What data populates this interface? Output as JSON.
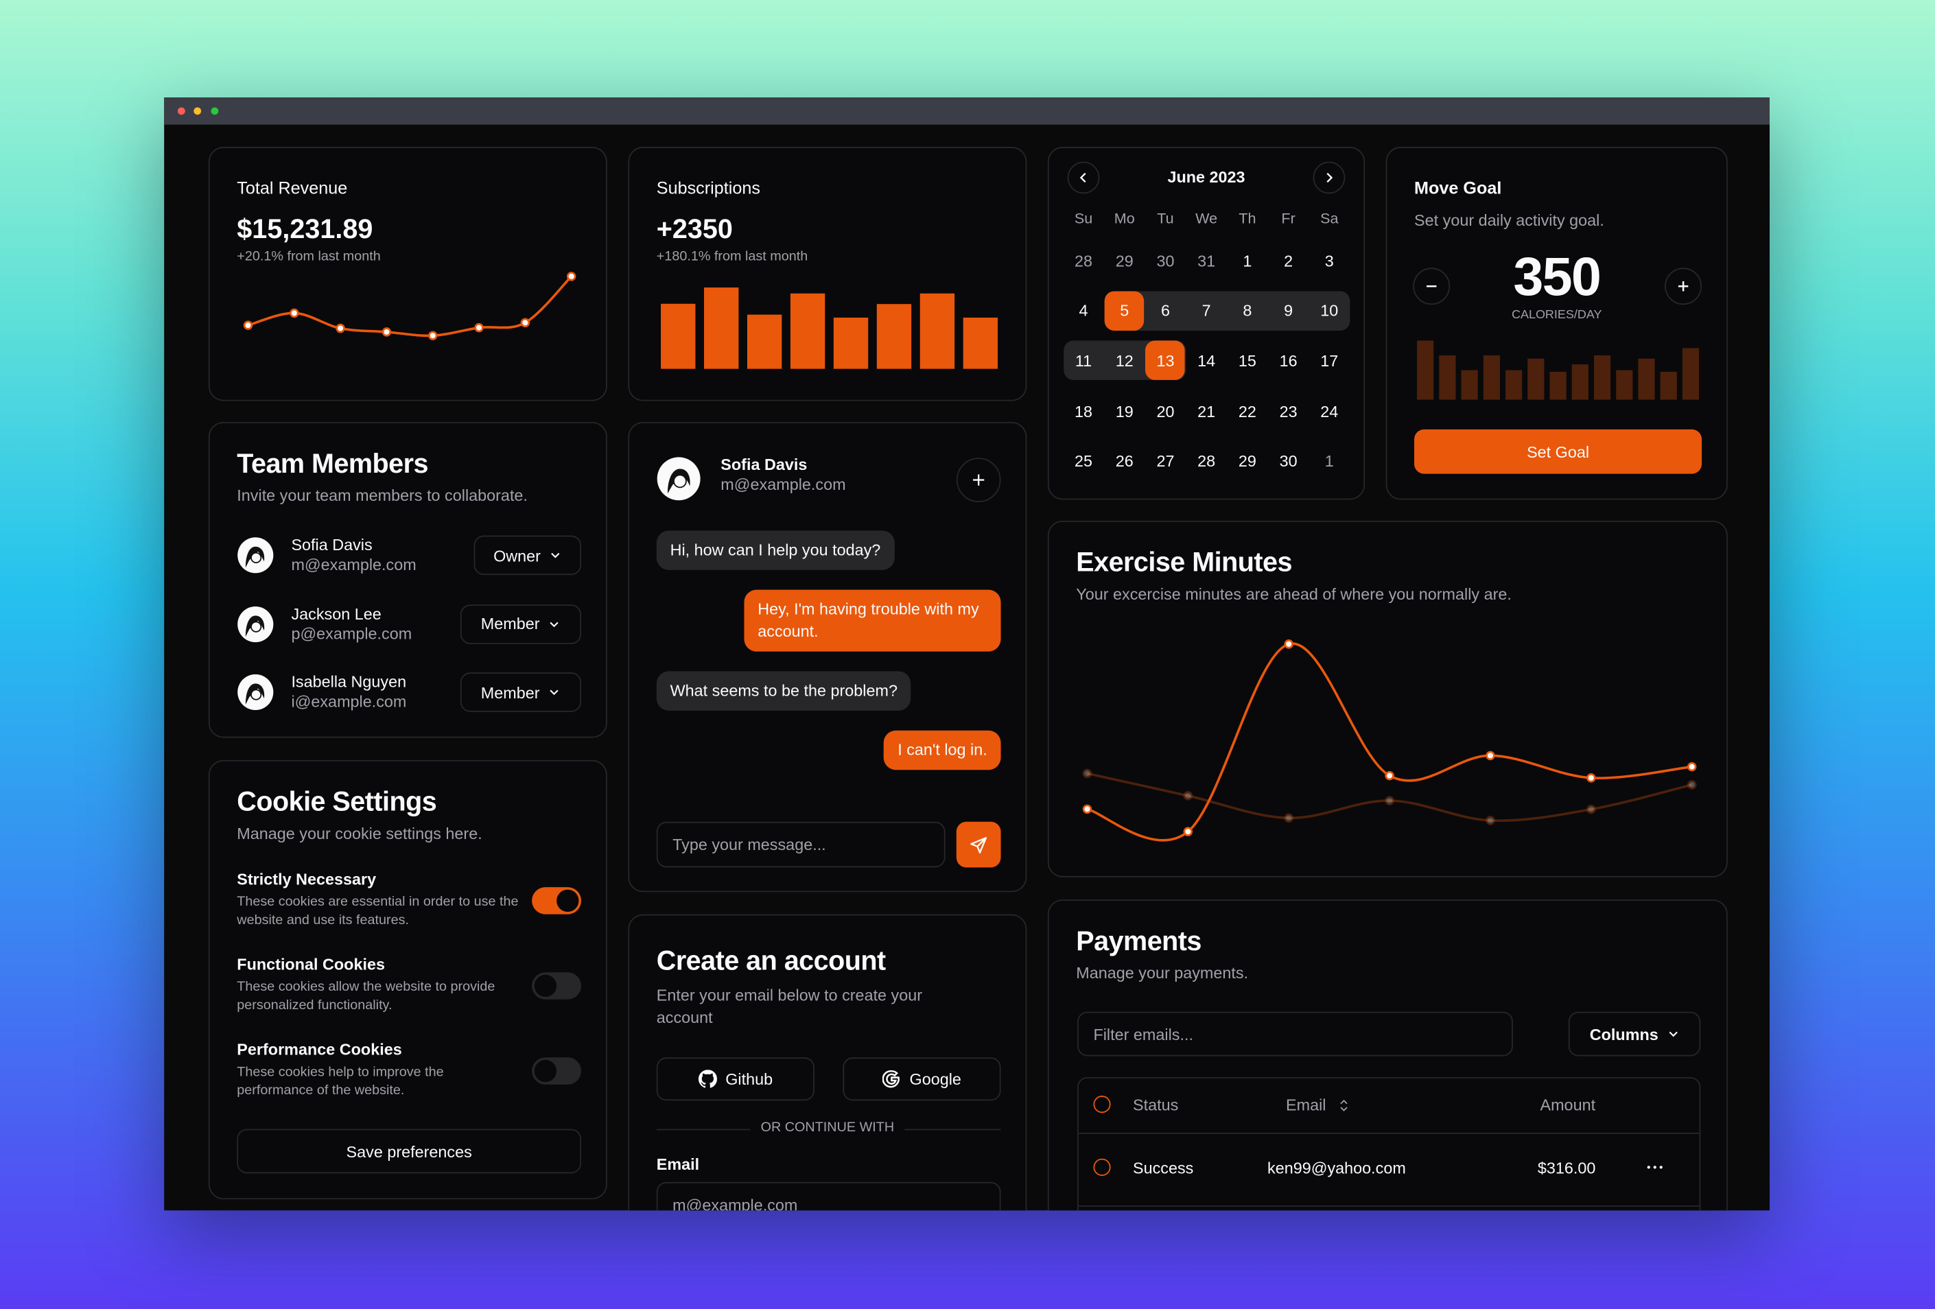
{
  "revenue": {
    "title": "Total Revenue",
    "value": "$15,231.89",
    "change": "+20.1% from last month"
  },
  "subscriptions": {
    "title": "Subscriptions",
    "value": "+2350",
    "change": "+180.1% from last month"
  },
  "calendar": {
    "month": "June 2023",
    "weekdays": [
      "Su",
      "Mo",
      "Tu",
      "We",
      "Th",
      "Fr",
      "Sa"
    ],
    "days": [
      28,
      29,
      30,
      31,
      1,
      2,
      3,
      4,
      5,
      6,
      7,
      8,
      9,
      10,
      11,
      12,
      13,
      14,
      15,
      16,
      17,
      18,
      19,
      20,
      21,
      22,
      23,
      24,
      25,
      26,
      27,
      28,
      29,
      30,
      1
    ],
    "selected_range": [
      5,
      13
    ]
  },
  "move_goal": {
    "title": "Move Goal",
    "subtitle": "Set your daily activity goal.",
    "value": 350,
    "unit": "CALORIES/DAY",
    "button": "Set Goal"
  },
  "team": {
    "title": "Team Members",
    "subtitle": "Invite your team members to collaborate.",
    "members": [
      {
        "name": "Sofia Davis",
        "email": "m@example.com",
        "role": "Owner"
      },
      {
        "name": "Jackson Lee",
        "email": "p@example.com",
        "role": "Member"
      },
      {
        "name": "Isabella Nguyen",
        "email": "i@example.com",
        "role": "Member"
      }
    ]
  },
  "cookies": {
    "title": "Cookie Settings",
    "subtitle": "Manage your cookie settings here.",
    "items": [
      {
        "title": "Strictly Necessary",
        "description": "These cookies are essential in order to use the website and use its features.",
        "enabled": true
      },
      {
        "title": "Functional Cookies",
        "description": "These cookies allow the website to provide personalized functionality.",
        "enabled": false
      },
      {
        "title": "Performance Cookies",
        "description": "These cookies help to improve the performance of the website.",
        "enabled": false
      }
    ],
    "button": "Save preferences"
  },
  "chat": {
    "name": "Sofia Davis",
    "email": "m@example.com",
    "messages": [
      {
        "side": "left",
        "text": "Hi, how can I help you today?"
      },
      {
        "side": "right",
        "text": "Hey, I'm having trouble with my account."
      },
      {
        "side": "left",
        "text": "What seems to be the problem?"
      },
      {
        "side": "right",
        "text": "I can't log in."
      }
    ],
    "placeholder": "Type your message..."
  },
  "account": {
    "title": "Create an account",
    "subtitle": "Enter your email below to create your account",
    "github": "Github",
    "google": "Google",
    "divider": "OR CONTINUE WITH",
    "email_label": "Email",
    "email_placeholder": "m@example.com"
  },
  "exercise": {
    "title": "Exercise Minutes",
    "subtitle": "Your excercise minutes are ahead of where you normally are."
  },
  "payments": {
    "title": "Payments",
    "subtitle": "Manage your payments.",
    "filter_placeholder": "Filter emails...",
    "columns_button": "Columns",
    "headers": [
      "Status",
      "Email",
      "Amount"
    ],
    "rows": [
      {
        "status": "Success",
        "email": "ken99@yahoo.com",
        "amount": "$316.00"
      }
    ]
  },
  "chart_data": [
    {
      "type": "line",
      "values": [
        10400,
        14405,
        9400,
        8200,
        7000,
        9600,
        11244,
        26475
      ],
      "color": "#ea580c"
    },
    {
      "type": "bar",
      "values": [
        240,
        300,
        200,
        278,
        189,
        239,
        278,
        189
      ],
      "color": "#ea580c"
    },
    {
      "type": "bar",
      "values": [
        400,
        300,
        200,
        300,
        200,
        278,
        189,
        239,
        300,
        200,
        278,
        189,
        349
      ],
      "color": "#ea580c",
      "opacity": 0.3
    },
    {
      "type": "line",
      "series": [
        {
          "color": "#ea580c",
          "opacity": 0.3,
          "values": [
            400,
            300,
            200,
            278,
            189,
            239,
            349
          ]
        },
        {
          "color": "#ea580c",
          "opacity": 1,
          "values": [
            240,
            139,
            980,
            390,
            480,
            380,
            430
          ]
        }
      ]
    }
  ]
}
